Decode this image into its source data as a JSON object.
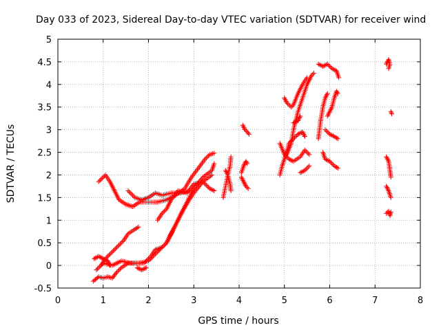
{
  "chart_data": {
    "type": "scatter",
    "title": "Day 033 of 2023, Sidereal Day-to-day VTEC variation (SDTVAR) for receiver wind",
    "xlabel": "GPS time / hours",
    "ylabel": "SDTVAR / TECUs",
    "xlim": [
      0,
      8
    ],
    "ylim": [
      -0.5,
      5
    ],
    "xticks": [
      "0",
      "1",
      "2",
      "3",
      "4",
      "5",
      "6",
      "7",
      "8"
    ],
    "yticks": [
      "-0.5",
      "0",
      "0.5",
      "1",
      "1.5",
      "2",
      "2.5",
      "3",
      "3.5",
      "4",
      "4.5",
      "5"
    ],
    "grid": true,
    "marker": "plus",
    "color": "#ff0000",
    "series": [
      {
        "tracks": [
          [
            [
              0.78,
              -0.35
            ],
            [
              0.9,
              -0.25
            ],
            [
              1.0,
              -0.28
            ],
            [
              1.1,
              -0.25
            ],
            [
              1.2,
              -0.28
            ],
            [
              1.3,
              -0.15
            ],
            [
              1.4,
              -0.05
            ],
            [
              1.55,
              0.05
            ],
            [
              1.8,
              0.05
            ],
            [
              2.0,
              0.1
            ],
            [
              2.2,
              0.3
            ],
            [
              2.4,
              0.5
            ],
            [
              2.6,
              0.9
            ],
            [
              2.8,
              1.3
            ],
            [
              3.0,
              1.7
            ],
            [
              3.2,
              1.95
            ],
            [
              3.4,
              2.1
            ],
            [
              3.45,
              2.25
            ]
          ],
          [
            [
              0.85,
              -0.1
            ],
            [
              1.0,
              0.05
            ],
            [
              1.2,
              0.0
            ],
            [
              1.4,
              0.1
            ],
            [
              1.6,
              0.05
            ],
            [
              1.9,
              0.05
            ],
            [
              2.05,
              0.2
            ],
            [
              2.15,
              0.35
            ],
            [
              2.3,
              0.4
            ],
            [
              2.4,
              0.5
            ],
            [
              2.5,
              0.7
            ],
            [
              2.6,
              0.9
            ],
            [
              2.75,
              1.2
            ],
            [
              2.9,
              1.45
            ],
            [
              3.0,
              1.6
            ],
            [
              3.2,
              1.85
            ],
            [
              3.4,
              2.0
            ]
          ],
          [
            [
              0.8,
              0.15
            ],
            [
              0.9,
              0.2
            ],
            [
              1.0,
              0.15
            ],
            [
              1.1,
              0.1
            ],
            [
              1.15,
              0.0
            ]
          ],
          [
            [
              0.95,
              0.0
            ],
            [
              1.05,
              0.15
            ],
            [
              1.15,
              0.25
            ],
            [
              1.25,
              0.35
            ],
            [
              1.35,
              0.45
            ],
            [
              1.45,
              0.55
            ],
            [
              1.55,
              0.7
            ],
            [
              1.7,
              0.8
            ],
            [
              1.78,
              0.85
            ]
          ],
          [
            [
              0.9,
              1.85
            ],
            [
              1.0,
              1.95
            ],
            [
              1.05,
              2.0
            ],
            [
              1.15,
              1.85
            ],
            [
              1.25,
              1.65
            ],
            [
              1.35,
              1.45
            ],
            [
              1.5,
              1.35
            ],
            [
              1.65,
              1.3
            ],
            [
              1.8,
              1.4
            ],
            [
              2.0,
              1.4
            ],
            [
              2.2,
              1.4
            ],
            [
              2.4,
              1.45
            ],
            [
              2.6,
              1.55
            ],
            [
              2.8,
              1.7
            ],
            [
              2.95,
              1.95
            ],
            [
              3.1,
              2.15
            ],
            [
              3.25,
              2.35
            ],
            [
              3.35,
              2.45
            ],
            [
              3.45,
              2.48
            ]
          ],
          [
            [
              1.55,
              1.65
            ],
            [
              1.7,
              1.5
            ],
            [
              1.85,
              1.45
            ],
            [
              2.0,
              1.5
            ],
            [
              2.15,
              1.6
            ],
            [
              2.3,
              1.55
            ],
            [
              2.5,
              1.6
            ],
            [
              2.7,
              1.6
            ],
            [
              2.9,
              1.65
            ]
          ],
          [
            [
              1.75,
              -0.05
            ],
            [
              1.85,
              -0.1
            ],
            [
              1.95,
              -0.05
            ]
          ],
          [
            [
              2.2,
              1.0
            ],
            [
              2.3,
              1.15
            ],
            [
              2.4,
              1.25
            ],
            [
              2.5,
              1.45
            ],
            [
              2.65,
              1.65
            ],
            [
              2.85,
              1.6
            ],
            [
              3.0,
              1.8
            ],
            [
              3.2,
              1.85
            ],
            [
              3.35,
              1.7
            ],
            [
              3.45,
              1.65
            ]
          ],
          [
            [
              3.65,
              1.5
            ],
            [
              3.7,
              1.75
            ],
            [
              3.75,
              2.0
            ],
            [
              3.8,
              2.2
            ],
            [
              3.82,
              2.4
            ]
          ],
          [
            [
              3.7,
              2.1
            ],
            [
              3.75,
              2.0
            ],
            [
              3.8,
              1.8
            ],
            [
              3.82,
              1.65
            ]
          ],
          [
            [
              4.05,
              2.05
            ],
            [
              4.1,
              2.2
            ],
            [
              4.15,
              2.3
            ],
            [
              4.18,
              2.25
            ]
          ],
          [
            [
              4.05,
              1.95
            ],
            [
              4.1,
              1.85
            ],
            [
              4.15,
              1.75
            ],
            [
              4.2,
              1.7
            ]
          ],
          [
            [
              4.08,
              3.1
            ],
            [
              4.13,
              3.0
            ],
            [
              4.18,
              2.95
            ],
            [
              4.22,
              2.9
            ]
          ],
          [
            [
              4.9,
              2.0
            ],
            [
              4.95,
              2.2
            ],
            [
              5.0,
              2.35
            ],
            [
              5.05,
              2.5
            ],
            [
              5.1,
              2.7
            ],
            [
              5.2,
              2.8
            ],
            [
              5.3,
              2.9
            ],
            [
              5.4,
              2.95
            ],
            [
              5.45,
              2.85
            ]
          ],
          [
            [
              4.9,
              2.7
            ],
            [
              5.0,
              2.45
            ],
            [
              5.1,
              2.35
            ],
            [
              5.2,
              2.3
            ],
            [
              5.35,
              2.4
            ],
            [
              5.45,
              2.55
            ],
            [
              5.55,
              2.45
            ]
          ],
          [
            [
              5.05,
              2.45
            ],
            [
              5.15,
              2.7
            ],
            [
              5.2,
              3.0
            ],
            [
              5.3,
              3.4
            ],
            [
              5.4,
              3.7
            ],
            [
              5.5,
              4.0
            ],
            [
              5.6,
              4.2
            ],
            [
              5.65,
              4.25
            ]
          ],
          [
            [
              5.0,
              3.7
            ],
            [
              5.05,
              3.6
            ],
            [
              5.15,
              3.5
            ],
            [
              5.2,
              3.55
            ],
            [
              5.3,
              3.8
            ],
            [
              5.4,
              4.0
            ],
            [
              5.5,
              4.15
            ]
          ],
          [
            [
              5.35,
              2.05
            ],
            [
              5.45,
              2.1
            ],
            [
              5.55,
              2.2
            ]
          ],
          [
            [
              5.2,
              3.15
            ],
            [
              5.3,
              3.2
            ],
            [
              5.35,
              3.3
            ]
          ],
          [
            [
              5.75,
              4.45
            ],
            [
              5.85,
              4.4
            ],
            [
              5.95,
              4.45
            ],
            [
              6.05,
              4.35
            ],
            [
              6.15,
              4.3
            ],
            [
              6.2,
              4.15
            ]
          ],
          [
            [
              5.75,
              2.8
            ],
            [
              5.8,
              3.2
            ],
            [
              5.85,
              3.5
            ],
            [
              5.9,
              3.7
            ],
            [
              5.95,
              3.8
            ]
          ],
          [
            [
              5.85,
              2.5
            ],
            [
              5.9,
              2.35
            ],
            [
              6.0,
              2.3
            ],
            [
              6.1,
              2.2
            ],
            [
              6.18,
              2.15
            ]
          ],
          [
            [
              5.9,
              3.0
            ],
            [
              6.0,
              2.9
            ],
            [
              6.1,
              2.85
            ],
            [
              6.18,
              2.8
            ]
          ],
          [
            [
              5.95,
              3.3
            ],
            [
              6.05,
              3.5
            ],
            [
              6.1,
              3.7
            ],
            [
              6.15,
              3.85
            ],
            [
              6.18,
              3.8
            ]
          ],
          [
            [
              7.25,
              4.45
            ],
            [
              7.3,
              4.55
            ],
            [
              7.33,
              4.45
            ],
            [
              7.3,
              4.35
            ]
          ],
          [
            [
              7.35,
              3.4
            ],
            [
              7.37,
              3.35
            ]
          ],
          [
            [
              7.25,
              2.4
            ],
            [
              7.3,
              2.3
            ],
            [
              7.33,
              2.1
            ],
            [
              7.35,
              1.95
            ]
          ],
          [
            [
              7.25,
              1.75
            ],
            [
              7.3,
              1.65
            ],
            [
              7.35,
              1.5
            ]
          ],
          [
            [
              7.25,
              1.15
            ],
            [
              7.3,
              1.2
            ],
            [
              7.33,
              1.1
            ],
            [
              7.35,
              1.18
            ]
          ]
        ]
      }
    ]
  }
}
